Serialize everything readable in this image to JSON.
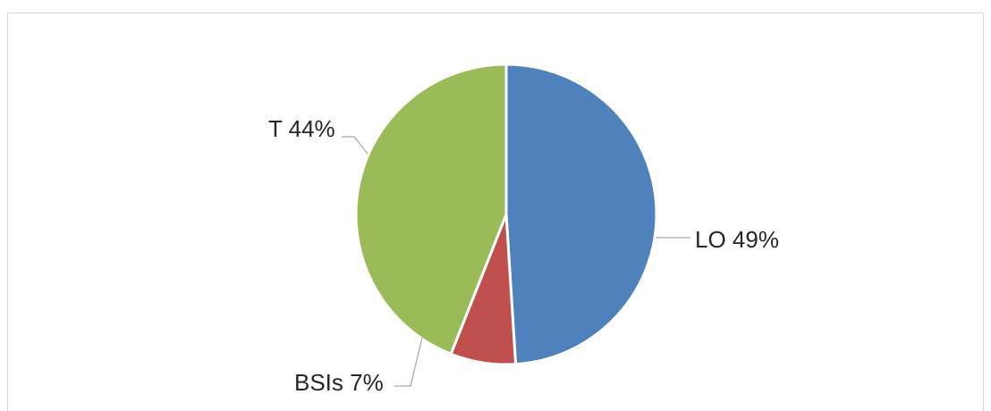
{
  "chart_data": {
    "type": "pie",
    "slices": [
      {
        "label": "LO 49%",
        "category": "LO",
        "value": 49,
        "color": "#4F81BD"
      },
      {
        "label": "BSIs 7%",
        "category": "BSIs",
        "value": 7,
        "color": "#C0504D"
      },
      {
        "label": "T 44%",
        "category": "T",
        "value": 44,
        "color": "#9BBB59"
      }
    ],
    "legend": "none"
  }
}
